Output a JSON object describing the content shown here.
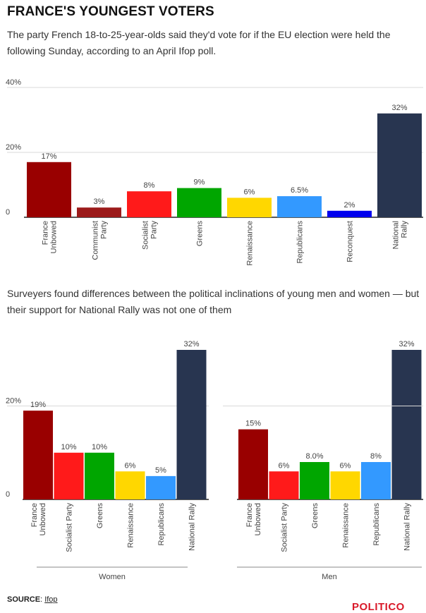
{
  "header": {
    "title": "FRANCE'S YOUNGEST VOTERS",
    "subtitle": "The party French 18-to-25-year-olds said they'd vote for if the EU election were held the following Sunday, according to an April Ifop poll.",
    "subtitle2": "Surveyers found differences between the political inclinations of young men and women — but their support for National Rally was not one of them"
  },
  "footer": {
    "source_label": "SOURCE",
    "source_sep": ": ",
    "source_link": "Ifop",
    "logo": "POLITICO"
  },
  "chart_data": [
    {
      "type": "bar",
      "title": "FRANCE'S YOUNGEST VOTERS",
      "categories": [
        [
          "France",
          "Unbowed"
        ],
        [
          "Communist",
          "Party"
        ],
        [
          "Socialist",
          "Party"
        ],
        [
          "Greens"
        ],
        [
          "Renaissance"
        ],
        [
          "Republicans"
        ],
        [
          "Reconquest"
        ],
        [
          "National",
          "Rally"
        ]
      ],
      "values": [
        17,
        3,
        8,
        9,
        6,
        6.5,
        2,
        32
      ],
      "value_labels": [
        "17%",
        "3%",
        "8%",
        "9%",
        "6%",
        "6.5%",
        "2%",
        "32%"
      ],
      "colors": [
        "#990000",
        "#9c1b1b",
        "#ff1a1a",
        "#00a600",
        "#ffd700",
        "#3399ff",
        "#0000ee",
        "#283550"
      ],
      "yticks": [
        "0",
        "20%",
        "40%"
      ],
      "ytick_values": [
        0,
        20,
        40
      ],
      "ylim": [
        0,
        40
      ]
    },
    {
      "type": "bar",
      "group": "Women",
      "categories": [
        [
          "France",
          "Unbowed"
        ],
        [
          "Socialist Party"
        ],
        [
          "Greens"
        ],
        [
          "Renaissance"
        ],
        [
          "Republicans"
        ],
        [
          "National Rally"
        ]
      ],
      "values": [
        19,
        10,
        10,
        6,
        5,
        32
      ],
      "value_labels": [
        "19%",
        "10%",
        "10%",
        "6%",
        "5%",
        "32%"
      ],
      "colors": [
        "#990000",
        "#ff1a1a",
        "#00a600",
        "#ffd700",
        "#3399ff",
        "#283550"
      ],
      "yticks": [
        "0",
        "20%"
      ],
      "ytick_values": [
        0,
        20
      ],
      "ylim": [
        0,
        32
      ]
    },
    {
      "type": "bar",
      "group": "Men",
      "categories": [
        [
          "France",
          "Unbowed"
        ],
        [
          "Socialist Party"
        ],
        [
          "Greens"
        ],
        [
          "Renaissance"
        ],
        [
          "Republicans"
        ],
        [
          "National Rally"
        ]
      ],
      "values": [
        15,
        6,
        8.0,
        6,
        8,
        32
      ],
      "value_labels": [
        "15%",
        "6%",
        "8.0%",
        "6%",
        "8%",
        "32%"
      ],
      "colors": [
        "#990000",
        "#ff1a1a",
        "#00a600",
        "#ffd700",
        "#3399ff",
        "#283550"
      ],
      "yticks": [],
      "ytick_values": [],
      "ylim": [
        0,
        32
      ]
    }
  ]
}
